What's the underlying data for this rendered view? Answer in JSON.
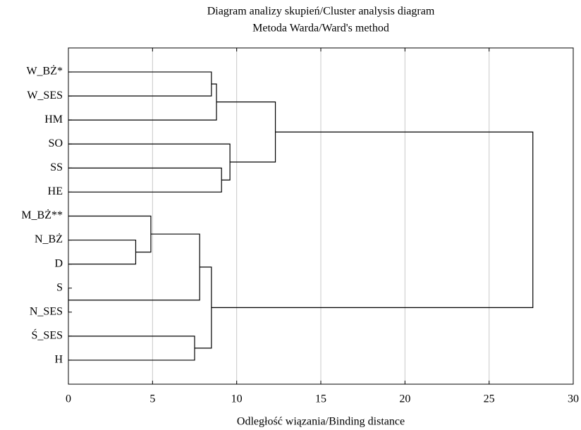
{
  "chart_data": {
    "type": "dendrogram",
    "title": "Diagram analizy skupień/Cluster analysis diagram",
    "subtitle": "Metoda Warda/Ward's method",
    "x_label": "Odległość wiązania/Binding distance",
    "categories": [
      "W_BŻ*",
      "W_SES",
      "HM",
      "SO",
      "SS",
      "HE",
      "M_BŻ**",
      "N_BŻ",
      "D",
      "S",
      "N_SES",
      "Ś_SES",
      "H"
    ],
    "merges": [
      {
        "left": 0,
        "right": 1,
        "height": 8.5
      },
      {
        "left": 13,
        "right": 2,
        "height": 8.8
      },
      {
        "left": 4,
        "right": 5,
        "height": 9.1
      },
      {
        "left": 3,
        "right": 15,
        "height": 9.6
      },
      {
        "left": 14,
        "right": 16,
        "height": 12.3
      },
      {
        "left": 7,
        "right": 8,
        "height": 4.0
      },
      {
        "left": 6,
        "right": 18,
        "height": 4.9
      },
      {
        "left": 9,
        "right": 10,
        "height": 0
      },
      {
        "left": 19,
        "right": 20,
        "height": 7.8
      },
      {
        "left": 11,
        "right": 12,
        "height": 7.5
      },
      {
        "left": 21,
        "right": 22,
        "height": 8.5
      },
      {
        "left": 17,
        "right": 23,
        "height": 27.6
      }
    ],
    "xlim": [
      0,
      30
    ],
    "xticks": [
      0,
      5,
      10,
      15,
      20,
      25,
      30
    ],
    "grid": true,
    "color": "#000000"
  }
}
